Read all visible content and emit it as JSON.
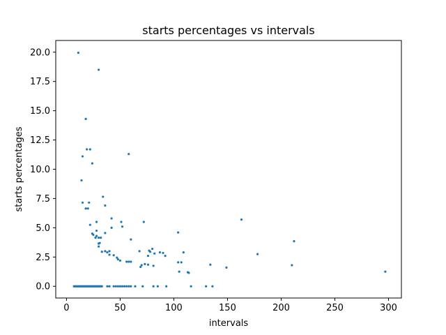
{
  "chart_data": {
    "type": "scatter",
    "title": "starts percentages vs intervals",
    "xlabel": "intervals",
    "ylabel": "starts percentages",
    "xlim": [
      -10,
      312
    ],
    "ylim": [
      -1.0,
      21.0
    ],
    "xticks": [
      0,
      50,
      100,
      150,
      200,
      250,
      300
    ],
    "yticks": [
      0.0,
      2.5,
      5.0,
      7.5,
      10.0,
      12.5,
      15.0,
      17.5,
      20.0
    ],
    "ytick_labels": [
      "0.0",
      "2.5",
      "5.0",
      "7.5",
      "10.0",
      "12.5",
      "15.0",
      "17.5",
      "20.0"
    ],
    "grid": false,
    "series": [
      {
        "color": "#1f77b4",
        "x": [
          11,
          30,
          18,
          19,
          22,
          15,
          58,
          24,
          14,
          34,
          15,
          36,
          42,
          51,
          21,
          18,
          20,
          42,
          52,
          72,
          163,
          22,
          28,
          104,
          36,
          60,
          24,
          28,
          30,
          32,
          25,
          27,
          30,
          30,
          33,
          28,
          31,
          36,
          38,
          40,
          40,
          44,
          47,
          48,
          50,
          56,
          58,
          60,
          68,
          70,
          76,
          77,
          78,
          80,
          82,
          87,
          90,
          92,
          109,
          104,
          107,
          73,
          178,
          212,
          69,
          76,
          81,
          134,
          149,
          210,
          105,
          113,
          114,
          297,
          7,
          8,
          9,
          10,
          11,
          12,
          13,
          14,
          15,
          16,
          17,
          18,
          19,
          20,
          21,
          22,
          23,
          24,
          25,
          26,
          27,
          28,
          29,
          30,
          31,
          32,
          33,
          38,
          40,
          44,
          46,
          48,
          50,
          52,
          54,
          56,
          58,
          60,
          64,
          71,
          81,
          85,
          93,
          116,
          130,
          136
        ],
        "y": [
          19.95,
          18.5,
          14.3,
          11.7,
          11.7,
          11.1,
          11.3,
          10.5,
          9.05,
          7.65,
          7.15,
          6.9,
          5.8,
          5.5,
          7.15,
          6.65,
          6.65,
          5.0,
          5.1,
          5.5,
          5.7,
          5.25,
          5.5,
          4.6,
          4.55,
          4.0,
          4.5,
          4.3,
          4.15,
          4.15,
          4.4,
          4.15,
          3.65,
          3.4,
          2.95,
          4.75,
          3.7,
          3.0,
          2.9,
          2.7,
          3.0,
          2.65,
          2.45,
          2.3,
          2.2,
          2.1,
          2.1,
          2.1,
          3.0,
          1.8,
          1.85,
          3.05,
          2.95,
          3.2,
          2.8,
          2.9,
          2.85,
          2.6,
          2.9,
          2.05,
          2.05,
          1.9,
          2.75,
          3.85,
          1.65,
          2.6,
          1.75,
          1.85,
          1.6,
          1.8,
          1.25,
          1.2,
          1.15,
          1.25,
          0,
          0,
          0,
          0,
          0,
          0,
          0,
          0,
          0,
          0,
          0,
          0,
          0,
          0,
          0,
          0,
          0,
          0,
          0,
          0,
          0,
          0,
          0,
          0,
          0,
          0,
          0,
          0,
          0,
          0,
          0,
          0,
          0,
          0,
          0,
          0,
          0,
          0,
          0,
          0,
          0,
          0,
          0,
          0,
          0,
          0
        ]
      }
    ]
  }
}
